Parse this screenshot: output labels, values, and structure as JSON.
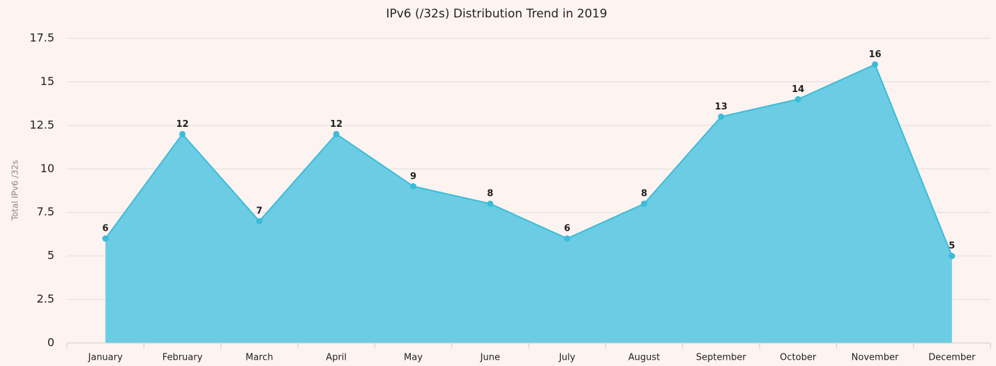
{
  "chart_data": {
    "type": "area",
    "title": "IPv6 (/32s) Distribution Trend in 2019",
    "y_label": "Total IPv6 /32s",
    "categories": [
      "January",
      "February",
      "March",
      "April",
      "May",
      "June",
      "July",
      "August",
      "September",
      "October",
      "November",
      "December"
    ],
    "values": [
      6,
      12,
      7,
      12,
      9,
      8,
      6,
      8,
      13,
      14,
      16,
      5
    ],
    "color": "#5bc8e2",
    "line_color": "#3bbcd9",
    "ylim": [
      0,
      17.5
    ],
    "yticks": [
      0,
      2.5,
      5,
      7.5,
      10,
      12.5,
      15,
      17.5
    ],
    "grid": true
  }
}
